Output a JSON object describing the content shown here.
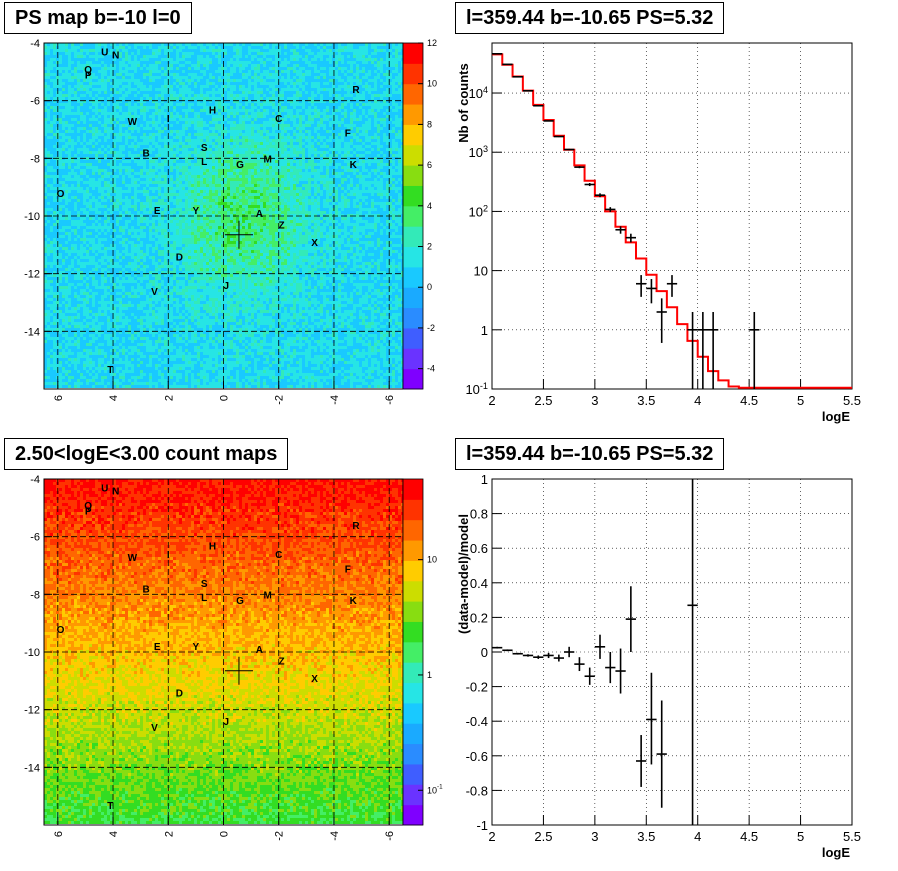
{
  "panels": {
    "map_ps": {
      "title": "PS map b=-10 l=0"
    },
    "spectrum": {
      "title": "l=359.44 b=-10.65 PS=5.32"
    },
    "map_counts": {
      "title": "2.50<logE<3.00 count maps"
    },
    "residual": {
      "title": "l=359.44 b=-10.65 PS=5.32"
    }
  },
  "chart_data": [
    {
      "type": "heatmap",
      "title": "PS map b=-10 l=0",
      "x_ticks": [
        "6",
        "4",
        "2",
        "0",
        "-2",
        "-4",
        "-6"
      ],
      "y_ticks": [
        "-4",
        "-6",
        "-8",
        "-10",
        "-12",
        "-14"
      ],
      "xlim": [
        6.5,
        -6.5
      ],
      "ylim": [
        -16,
        -4
      ],
      "colorbar": {
        "scale": "linear",
        "range": [
          -5,
          12
        ],
        "ticks": [
          "-4",
          "-2",
          "0",
          "2",
          "4",
          "6",
          "8",
          "10",
          "12"
        ]
      },
      "colors": [
        "#7f00ff",
        "#6a33ff",
        "#3f5eff",
        "#2a8cff",
        "#1aaaff",
        "#19c9ff",
        "#26e5e5",
        "#33eab8",
        "#44ee66",
        "#33dd22",
        "#88dd11",
        "#ccdd00",
        "#ffcc00",
        "#ff9900",
        "#ff6600",
        "#ff3300",
        "#ff0000"
      ],
      "grid": true,
      "marker": {
        "l": -0.56,
        "b": -10.65
      },
      "sources": [
        {
          "label": "U",
          "l": 4.3,
          "b": -4.3
        },
        {
          "label": "N",
          "l": 3.9,
          "b": -4.4
        },
        {
          "label": "Q",
          "l": 4.9,
          "b": -4.9
        },
        {
          "label": "P",
          "l": 4.9,
          "b": -5.1
        },
        {
          "label": "R",
          "l": -4.8,
          "b": -5.6
        },
        {
          "label": "H",
          "l": 0.4,
          "b": -6.3
        },
        {
          "label": "I",
          "l": 2.0,
          "b": -6.6
        },
        {
          "label": "W",
          "l": 3.3,
          "b": -6.7
        },
        {
          "label": "C",
          "l": -2.0,
          "b": -6.6
        },
        {
          "label": "F",
          "l": -4.5,
          "b": -7.1
        },
        {
          "label": "S",
          "l": 0.7,
          "b": -7.6
        },
        {
          "label": "B",
          "l": 2.8,
          "b": -7.8
        },
        {
          "label": "L",
          "l": 0.7,
          "b": -8.1
        },
        {
          "label": "G",
          "l": -0.6,
          "b": -8.2
        },
        {
          "label": "M",
          "l": -1.6,
          "b": -8.0
        },
        {
          "label": "K",
          "l": -4.7,
          "b": -8.2
        },
        {
          "label": "O",
          "l": 5.9,
          "b": -9.2
        },
        {
          "label": "E",
          "l": 2.4,
          "b": -9.8
        },
        {
          "label": "Y",
          "l": 1.0,
          "b": -9.8
        },
        {
          "label": "A",
          "l": -1.3,
          "b": -9.9
        },
        {
          "label": "Z",
          "l": -2.1,
          "b": -10.3
        },
        {
          "label": "X",
          "l": -3.3,
          "b": -10.9
        },
        {
          "label": "D",
          "l": 1.6,
          "b": -11.4
        },
        {
          "label": "J",
          "l": -0.1,
          "b": -12.4
        },
        {
          "label": "V",
          "l": 2.5,
          "b": -12.6
        },
        {
          "label": "T",
          "l": 4.1,
          "b": -15.3
        }
      ]
    },
    {
      "type": "line",
      "title": "l=359.44 b=-10.65 PS=5.32",
      "xlabel": "logE",
      "ylabel": "Nb of counts",
      "xlim": [
        2,
        5.5
      ],
      "ylim": [
        0.1,
        70000
      ],
      "y_scale": "log",
      "x_ticks": [
        "2",
        "2.5",
        "3",
        "3.5",
        "4",
        "4.5",
        "5",
        "5.5"
      ],
      "y_ticks": [
        "10^-1",
        "1",
        "10",
        "10^2",
        "10^3",
        "10^4"
      ],
      "grid": true,
      "model_color": "#ff0000",
      "model": [
        {
          "x0": 2.0,
          "x1": 2.1,
          "y": 45000
        },
        {
          "x0": 2.1,
          "x1": 2.2,
          "y": 30000
        },
        {
          "x0": 2.2,
          "x1": 2.3,
          "y": 19000
        },
        {
          "x0": 2.3,
          "x1": 2.4,
          "y": 11000
        },
        {
          "x0": 2.4,
          "x1": 2.5,
          "y": 6300
        },
        {
          "x0": 2.5,
          "x1": 2.6,
          "y": 3500
        },
        {
          "x0": 2.6,
          "x1": 2.7,
          "y": 1900
        },
        {
          "x0": 2.7,
          "x1": 2.8,
          "y": 1100
        },
        {
          "x0": 2.8,
          "x1": 2.9,
          "y": 600
        },
        {
          "x0": 2.9,
          "x1": 3.0,
          "y": 330
        },
        {
          "x0": 3.0,
          "x1": 3.1,
          "y": 180
        },
        {
          "x0": 3.1,
          "x1": 3.2,
          "y": 100
        },
        {
          "x0": 3.2,
          "x1": 3.3,
          "y": 55
        },
        {
          "x0": 3.3,
          "x1": 3.4,
          "y": 30
        },
        {
          "x0": 3.4,
          "x1": 3.5,
          "y": 16
        },
        {
          "x0": 3.5,
          "x1": 3.6,
          "y": 8.5
        },
        {
          "x0": 3.6,
          "x1": 3.7,
          "y": 4.5
        },
        {
          "x0": 3.7,
          "x1": 3.8,
          "y": 2.4
        },
        {
          "x0": 3.8,
          "x1": 3.9,
          "y": 1.25
        },
        {
          "x0": 3.9,
          "x1": 4.0,
          "y": 0.65
        },
        {
          "x0": 4.0,
          "x1": 4.1,
          "y": 0.35
        },
        {
          "x0": 4.1,
          "x1": 4.2,
          "y": 0.2
        },
        {
          "x0": 4.2,
          "x1": 4.3,
          "y": 0.14
        },
        {
          "x0": 4.3,
          "x1": 4.4,
          "y": 0.11
        },
        {
          "x0": 4.4,
          "x1": 5.5,
          "y": 0.105
        }
      ],
      "data": [
        {
          "x": 2.05,
          "y": 46000,
          "lo": 45700,
          "hi": 46300
        },
        {
          "x": 2.15,
          "y": 30500,
          "lo": 30300,
          "hi": 30700
        },
        {
          "x": 2.25,
          "y": 18800,
          "lo": 18600,
          "hi": 19000
        },
        {
          "x": 2.35,
          "y": 10900,
          "lo": 10800,
          "hi": 11000
        },
        {
          "x": 2.45,
          "y": 6100,
          "lo": 6030,
          "hi": 6170
        },
        {
          "x": 2.55,
          "y": 3380,
          "lo": 3320,
          "hi": 3440
        },
        {
          "x": 2.65,
          "y": 1840,
          "lo": 1800,
          "hi": 1880
        },
        {
          "x": 2.75,
          "y": 1110,
          "lo": 1080,
          "hi": 1140
        },
        {
          "x": 2.85,
          "y": 560,
          "lo": 537,
          "hi": 584
        },
        {
          "x": 2.95,
          "y": 285,
          "lo": 268,
          "hi": 302
        },
        {
          "x": 3.05,
          "y": 188,
          "lo": 174,
          "hi": 202
        },
        {
          "x": 3.15,
          "y": 108,
          "lo": 98,
          "hi": 118
        },
        {
          "x": 3.25,
          "y": 49,
          "lo": 42,
          "hi": 56
        },
        {
          "x": 3.35,
          "y": 36,
          "lo": 30,
          "hi": 42
        },
        {
          "x": 3.45,
          "y": 6,
          "lo": 3.6,
          "hi": 8.4
        },
        {
          "x": 3.55,
          "y": 5,
          "lo": 2.8,
          "hi": 7.2
        },
        {
          "x": 3.65,
          "y": 2,
          "lo": 0.6,
          "hi": 3.4
        },
        {
          "x": 3.75,
          "y": 6,
          "lo": 3.6,
          "hi": 8.4
        },
        {
          "x": 3.95,
          "y": 1,
          "lo": 0.1,
          "hi": 2
        },
        {
          "x": 4.05,
          "y": 1,
          "lo": 0.1,
          "hi": 2
        },
        {
          "x": 4.15,
          "y": 1,
          "lo": 0.1,
          "hi": 2
        },
        {
          "x": 4.55,
          "y": 1,
          "lo": 0.1,
          "hi": 2
        }
      ]
    },
    {
      "type": "heatmap",
      "title": "2.50<logE<3.00 count maps",
      "x_ticks": [
        "6",
        "4",
        "2",
        "0",
        "-2",
        "-4",
        "-6"
      ],
      "y_ticks": [
        "-4",
        "-6",
        "-8",
        "-10",
        "-12",
        "-14"
      ],
      "xlim": [
        6.5,
        -6.5
      ],
      "ylim": [
        -16,
        -4
      ],
      "colorbar": {
        "scale": "log",
        "range": [
          0.05,
          50
        ],
        "ticks": [
          "10",
          "1",
          "10^-1"
        ]
      },
      "colors": [
        "#7f00ff",
        "#6a33ff",
        "#3f5eff",
        "#2a8cff",
        "#1aaaff",
        "#19c9ff",
        "#26e5e5",
        "#33eab8",
        "#44ee66",
        "#33dd22",
        "#88dd11",
        "#ccdd00",
        "#ffcc00",
        "#ff9900",
        "#ff6600",
        "#ff3300",
        "#ff0000"
      ],
      "grid": true,
      "marker": {
        "l": -0.56,
        "b": -10.65
      },
      "sources": [
        {
          "label": "U",
          "l": 4.3,
          "b": -4.3
        },
        {
          "label": "N",
          "l": 3.9,
          "b": -4.4
        },
        {
          "label": "Q",
          "l": 4.9,
          "b": -4.9
        },
        {
          "label": "P",
          "l": 4.9,
          "b": -5.1
        },
        {
          "label": "R",
          "l": -4.8,
          "b": -5.6
        },
        {
          "label": "H",
          "l": 0.4,
          "b": -6.3
        },
        {
          "label": "I",
          "l": 2.0,
          "b": -6.6
        },
        {
          "label": "W",
          "l": 3.3,
          "b": -6.7
        },
        {
          "label": "C",
          "l": -2.0,
          "b": -6.6
        },
        {
          "label": "F",
          "l": -4.5,
          "b": -7.1
        },
        {
          "label": "S",
          "l": 0.7,
          "b": -7.6
        },
        {
          "label": "B",
          "l": 2.8,
          "b": -7.8
        },
        {
          "label": "L",
          "l": 0.7,
          "b": -8.1
        },
        {
          "label": "G",
          "l": -0.6,
          "b": -8.2
        },
        {
          "label": "M",
          "l": -1.6,
          "b": -8.0
        },
        {
          "label": "K",
          "l": -4.7,
          "b": -8.2
        },
        {
          "label": "O",
          "l": 5.9,
          "b": -9.2
        },
        {
          "label": "E",
          "l": 2.4,
          "b": -9.8
        },
        {
          "label": "Y",
          "l": 1.0,
          "b": -9.8
        },
        {
          "label": "A",
          "l": -1.3,
          "b": -9.9
        },
        {
          "label": "Z",
          "l": -2.1,
          "b": -10.3
        },
        {
          "label": "X",
          "l": -3.3,
          "b": -10.9
        },
        {
          "label": "D",
          "l": 1.6,
          "b": -11.4
        },
        {
          "label": "J",
          "l": -0.1,
          "b": -12.4
        },
        {
          "label": "V",
          "l": 2.5,
          "b": -12.6
        },
        {
          "label": "T",
          "l": 4.1,
          "b": -15.3
        }
      ]
    },
    {
      "type": "scatter",
      "title": "l=359.44 b=-10.65 PS=5.32",
      "xlabel": "logE",
      "ylabel": "(data-model)/model",
      "xlim": [
        2,
        5.5
      ],
      "ylim": [
        -1,
        1
      ],
      "x_ticks": [
        "2",
        "2.5",
        "3",
        "3.5",
        "4",
        "4.5",
        "5",
        "5.5"
      ],
      "y_ticks": [
        "-1",
        "-0.8",
        "-0.6",
        "-0.4",
        "-0.2",
        "0",
        "0.2",
        "0.4",
        "0.6",
        "0.8",
        "1"
      ],
      "grid": true,
      "data": [
        {
          "x": 2.05,
          "y": 0.025,
          "lo": 0.02,
          "hi": 0.03
        },
        {
          "x": 2.15,
          "y": 0.01,
          "lo": 0.005,
          "hi": 0.015
        },
        {
          "x": 2.25,
          "y": -0.01,
          "lo": -0.015,
          "hi": -0.005
        },
        {
          "x": 2.35,
          "y": -0.02,
          "lo": -0.027,
          "hi": -0.013
        },
        {
          "x": 2.45,
          "y": -0.03,
          "lo": -0.04,
          "hi": -0.02
        },
        {
          "x": 2.55,
          "y": -0.02,
          "lo": -0.035,
          "hi": -0.005
        },
        {
          "x": 2.65,
          "y": -0.035,
          "lo": -0.055,
          "hi": -0.015
        },
        {
          "x": 2.75,
          "y": 0.0,
          "lo": -0.03,
          "hi": 0.03
        },
        {
          "x": 2.85,
          "y": -0.07,
          "lo": -0.11,
          "hi": -0.03
        },
        {
          "x": 2.95,
          "y": -0.14,
          "lo": -0.19,
          "hi": -0.09
        },
        {
          "x": 3.05,
          "y": 0.03,
          "lo": -0.04,
          "hi": 0.1
        },
        {
          "x": 3.15,
          "y": -0.09,
          "lo": -0.18,
          "hi": 0.0
        },
        {
          "x": 3.25,
          "y": -0.11,
          "lo": -0.24,
          "hi": 0.02
        },
        {
          "x": 3.35,
          "y": 0.19,
          "lo": 0.0,
          "hi": 0.38
        },
        {
          "x": 3.45,
          "y": -0.63,
          "lo": -0.78,
          "hi": -0.48
        },
        {
          "x": 3.55,
          "y": -0.39,
          "lo": -0.65,
          "hi": -0.12
        },
        {
          "x": 3.65,
          "y": -0.59,
          "lo": -0.9,
          "hi": -0.28
        },
        {
          "x": 3.95,
          "y": 0.27,
          "lo": -1.0,
          "hi": 1.0
        }
      ]
    }
  ]
}
